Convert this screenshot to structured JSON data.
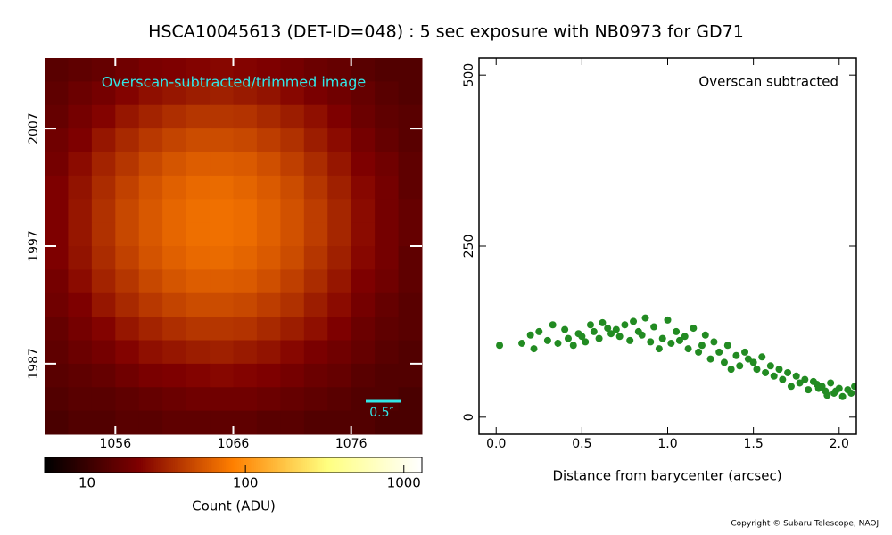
{
  "title": "HSCA10045613 (DET-ID=048) :  5 sec exposure with NB0973 for GD71",
  "copyright": "Copyright © Subaru Telescope, NAOJ.",
  "chart_data": [
    {
      "type": "heatmap",
      "annotation": "Overscan-subtracted/trimmed image",
      "scale_bar_label": "0.5″",
      "colormap": "afmhot",
      "xlim": [
        1050,
        1082
      ],
      "ylim": [
        1981,
        2013
      ],
      "xticks": [
        1056,
        1066,
        1076
      ],
      "yticks": [
        1987,
        1997,
        2007
      ],
      "z": [
        [
          14,
          15,
          16,
          18,
          20,
          21,
          22,
          23,
          22,
          21,
          19,
          17,
          16,
          14,
          13,
          13
        ],
        [
          15,
          17,
          19,
          22,
          25,
          27,
          29,
          30,
          28,
          26,
          23,
          20,
          18,
          16,
          14,
          13
        ],
        [
          16,
          19,
          22,
          27,
          31,
          35,
          38,
          38,
          37,
          33,
          29,
          25,
          21,
          17,
          15,
          14
        ],
        [
          18,
          21,
          27,
          33,
          39,
          44,
          48,
          48,
          46,
          41,
          36,
          29,
          24,
          19,
          16,
          14
        ],
        [
          19,
          24,
          31,
          38,
          46,
          53,
          58,
          58,
          56,
          50,
          42,
          34,
          27,
          21,
          18,
          15
        ],
        [
          21,
          26,
          34,
          43,
          52,
          60,
          66,
          67,
          63,
          56,
          48,
          38,
          30,
          23,
          19,
          15
        ],
        [
          21,
          27,
          36,
          46,
          55,
          64,
          70,
          71,
          68,
          60,
          51,
          41,
          32,
          24,
          19,
          16
        ],
        [
          21,
          27,
          36,
          46,
          55,
          64,
          70,
          71,
          68,
          60,
          51,
          41,
          32,
          24,
          19,
          16
        ],
        [
          21,
          26,
          34,
          43,
          52,
          60,
          66,
          67,
          63,
          56,
          48,
          38,
          30,
          23,
          19,
          15
        ],
        [
          19,
          24,
          31,
          38,
          46,
          53,
          58,
          58,
          56,
          50,
          42,
          34,
          27,
          21,
          18,
          15
        ],
        [
          18,
          21,
          27,
          33,
          39,
          44,
          48,
          48,
          46,
          41,
          36,
          29,
          24,
          19,
          16,
          14
        ],
        [
          16,
          19,
          22,
          27,
          31,
          35,
          38,
          38,
          37,
          33,
          29,
          25,
          21,
          17,
          15,
          14
        ],
        [
          15,
          17,
          19,
          22,
          25,
          27,
          29,
          30,
          28,
          26,
          23,
          20,
          18,
          16,
          14,
          13
        ],
        [
          14,
          15,
          16,
          18,
          20,
          21,
          22,
          23,
          22,
          21,
          19,
          17,
          16,
          14,
          13,
          13
        ],
        [
          13,
          14,
          14,
          15,
          16,
          17,
          18,
          18,
          18,
          17,
          16,
          15,
          14,
          13,
          13,
          12
        ],
        [
          12,
          13,
          13,
          14,
          14,
          15,
          15,
          15,
          15,
          14,
          14,
          13,
          13,
          13,
          12,
          12
        ]
      ],
      "colorbar": {
        "label": "Count (ADU)",
        "log": true,
        "lim": [
          5.4,
          1300
        ],
        "ticks": [
          10,
          100,
          1000
        ]
      }
    },
    {
      "type": "scatter",
      "annotation": "Overscan subtracted",
      "xlabel": "Distance from barycenter (arcsec)",
      "color": "#228b22",
      "xlim": [
        -0.1,
        2.1
      ],
      "ylim": [
        -25,
        525
      ],
      "xticks": [
        {
          "value": 0,
          "label": "0.0"
        },
        0.5,
        {
          "value": 1,
          "label": "1.0"
        },
        1.5,
        {
          "value": 2,
          "label": "2.0"
        }
      ],
      "yticks": [
        0,
        250,
        500
      ],
      "x": [
        0.02,
        0.15,
        0.2,
        0.22,
        0.25,
        0.3,
        0.33,
        0.36,
        0.4,
        0.42,
        0.45,
        0.48,
        0.5,
        0.52,
        0.55,
        0.57,
        0.6,
        0.62,
        0.65,
        0.67,
        0.7,
        0.72,
        0.75,
        0.78,
        0.8,
        0.83,
        0.85,
        0.87,
        0.9,
        0.92,
        0.95,
        0.97,
        1.0,
        1.02,
        1.05,
        1.07,
        1.1,
        1.12,
        1.15,
        1.18,
        1.2,
        1.22,
        1.25,
        1.27,
        1.3,
        1.33,
        1.35,
        1.37,
        1.4,
        1.42,
        1.45,
        1.47,
        1.5,
        1.52,
        1.55,
        1.57,
        1.6,
        1.62,
        1.65,
        1.67,
        1.7,
        1.72,
        1.75,
        1.77,
        1.8,
        1.82,
        1.85,
        1.87,
        1.9,
        1.92,
        1.95,
        1.97,
        2.0,
        2.02,
        2.05,
        2.07,
        2.09,
        1.93,
        1.88,
        1.98
      ],
      "values": [
        105,
        108,
        120,
        100,
        125,
        112,
        135,
        108,
        128,
        115,
        105,
        122,
        118,
        110,
        135,
        125,
        115,
        138,
        130,
        122,
        128,
        118,
        135,
        112,
        140,
        125,
        120,
        145,
        110,
        132,
        100,
        115,
        142,
        108,
        125,
        112,
        118,
        100,
        130,
        95,
        105,
        120,
        85,
        110,
        95,
        80,
        105,
        70,
        90,
        75,
        95,
        85,
        80,
        70,
        88,
        65,
        75,
        60,
        70,
        55,
        65,
        45,
        60,
        50,
        55,
        40,
        52,
        48,
        45,
        38,
        50,
        35,
        42,
        30,
        40,
        35,
        45,
        32,
        42,
        38
      ]
    }
  ]
}
